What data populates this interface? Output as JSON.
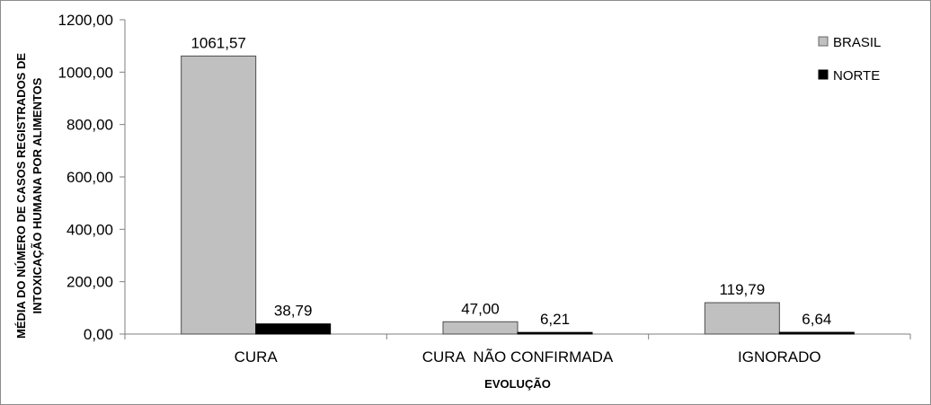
{
  "chart_data": {
    "type": "bar",
    "title": "",
    "xlabel": "EVOLUÇÃO",
    "ylabel": "MÉDIA DO NÚMERO DE CASOS REGISTRADOS DE INTOXICAÇÃO HUMANA POR ALIMENTOS",
    "ylabel_lines": [
      "MÉDIA DO NÚMERO DE CASOS REGISTRADOS DE",
      "INTOXICAÇÃO HUMANA POR ALIMENTOS"
    ],
    "categories": [
      "CURA",
      "CURA  NÃO CONFIRMADA",
      "IGNORADO"
    ],
    "series": [
      {
        "name": "BRASIL",
        "color": "#c0c0c0",
        "values": [
          1061.57,
          47.0,
          119.79
        ],
        "labels": [
          "1061,57",
          "47,00",
          "119,79"
        ]
      },
      {
        "name": "NORTE",
        "color": "#000000",
        "values": [
          38.79,
          6.21,
          6.64
        ],
        "labels": [
          "38,79",
          "6,21",
          "6,64"
        ]
      }
    ],
    "ylim": [
      0,
      1200
    ],
    "yticks": [
      0,
      200,
      400,
      600,
      800,
      1000,
      1200
    ],
    "ytick_labels": [
      "0,00",
      "200,00",
      "400,00",
      "600,00",
      "800,00",
      "1000,00",
      "1200,00"
    ],
    "grid": false,
    "legend_position": "top-right"
  }
}
